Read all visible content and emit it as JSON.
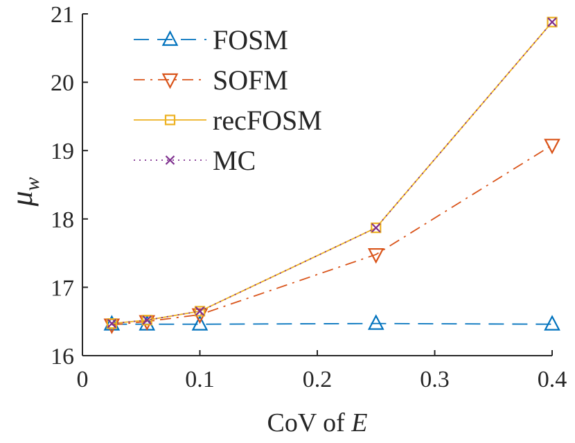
{
  "chart_data": {
    "type": "line",
    "title": "",
    "xlabel": "CoV of",
    "xlabel_var": "E",
    "ylabel": "μ",
    "ylabel_sub": "w",
    "xlim": [
      0,
      0.4
    ],
    "ylim": [
      16,
      21
    ],
    "xticks": [
      0,
      0.1,
      0.2,
      0.3,
      0.4
    ],
    "xtick_labels": [
      "0",
      "0.1",
      "0.2",
      "0.3",
      "0.4"
    ],
    "yticks": [
      16,
      17,
      18,
      19,
      20,
      21
    ],
    "ytick_labels": [
      "16",
      "17",
      "18",
      "19",
      "20",
      "21"
    ],
    "grid": false,
    "legend_position": "top-left",
    "x": [
      0.025,
      0.055,
      0.1,
      0.25,
      0.4
    ],
    "series": [
      {
        "name": "FOSM",
        "values": [
          16.46,
          16.46,
          16.46,
          16.47,
          16.46
        ],
        "color": "#0072BD",
        "line": "dashed",
        "marker": "triangle-up"
      },
      {
        "name": "SOFM",
        "values": [
          16.45,
          16.5,
          16.6,
          17.48,
          19.08
        ],
        "color": "#D95319",
        "line": "dashdot",
        "marker": "triangle-down"
      },
      {
        "name": "recFOSM",
        "values": [
          16.47,
          16.52,
          16.65,
          17.87,
          20.88
        ],
        "color": "#EDB120",
        "line": "solid",
        "marker": "square"
      },
      {
        "name": "MC",
        "values": [
          16.47,
          16.52,
          16.65,
          17.87,
          20.88
        ],
        "color": "#7E2F8E",
        "line": "dotted",
        "marker": "x"
      }
    ]
  }
}
